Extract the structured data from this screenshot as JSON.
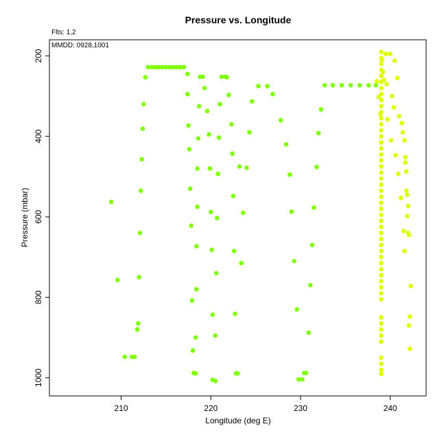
{
  "chart_data": {
    "type": "scatter",
    "title": "Pressure vs. Longitude",
    "xlabel": "Longitude (deg E)",
    "ylabel": "Pressure (mbar)",
    "xlim": [
      202,
      244
    ],
    "ylim": [
      1045,
      160
    ],
    "y_inverted": true,
    "xticks": [
      210,
      220,
      230,
      240
    ],
    "yticks": [
      200,
      400,
      600,
      800,
      1000
    ],
    "annotations": {
      "flts": "Flts: 1,2",
      "mmdd": "MMDD: 0928,1001"
    },
    "grid": false,
    "series": [
      {
        "color": "#80ff00",
        "points": [
          [
            208.9,
            563
          ],
          [
            209.6,
            757
          ],
          [
            210.4,
            948
          ],
          [
            211.2,
            948
          ],
          [
            211.5,
            948
          ],
          [
            211.8,
            880
          ],
          [
            211.9,
            865
          ],
          [
            212.0,
            750
          ],
          [
            212.1,
            640
          ],
          [
            212.2,
            535
          ],
          [
            212.3,
            457
          ],
          [
            212.4,
            381
          ],
          [
            212.5,
            320
          ],
          [
            212.7,
            253
          ],
          [
            213.0,
            228
          ],
          [
            213.4,
            228
          ],
          [
            213.8,
            228
          ],
          [
            214.2,
            228
          ],
          [
            214.6,
            228
          ],
          [
            215.0,
            228
          ],
          [
            215.4,
            228
          ],
          [
            215.8,
            228
          ],
          [
            216.2,
            228
          ],
          [
            216.6,
            228
          ],
          [
            217.0,
            228
          ],
          [
            217.4,
            245
          ],
          [
            217.4,
            295
          ],
          [
            217.5,
            373
          ],
          [
            217.6,
            432
          ],
          [
            217.7,
            530
          ],
          [
            217.8,
            622
          ],
          [
            217.9,
            808
          ],
          [
            218.0,
            932
          ],
          [
            218.1,
            988
          ],
          [
            218.3,
            989
          ],
          [
            218.3,
            900
          ],
          [
            218.4,
            780
          ],
          [
            218.4,
            673
          ],
          [
            218.5,
            575
          ],
          [
            218.5,
            480
          ],
          [
            218.6,
            405
          ],
          [
            218.7,
            325
          ],
          [
            218.8,
            252
          ],
          [
            219.1,
            252
          ],
          [
            219.3,
            280
          ],
          [
            219.6,
            337
          ],
          [
            219.8,
            395
          ],
          [
            219.9,
            480
          ],
          [
            220.0,
            588
          ],
          [
            220.1,
            682
          ],
          [
            220.2,
            843
          ],
          [
            220.2,
            1005
          ],
          [
            220.5,
            1008
          ],
          [
            220.5,
            895
          ],
          [
            220.6,
            740
          ],
          [
            220.7,
            603
          ],
          [
            220.8,
            493
          ],
          [
            220.9,
            403
          ],
          [
            221.0,
            320
          ],
          [
            221.2,
            252
          ],
          [
            221.6,
            252
          ],
          [
            221.8,
            253
          ],
          [
            222.0,
            297
          ],
          [
            222.3,
            370
          ],
          [
            222.4,
            443
          ],
          [
            222.5,
            548
          ],
          [
            222.6,
            685
          ],
          [
            222.7,
            841
          ],
          [
            222.8,
            989
          ],
          [
            223.0,
            989
          ],
          [
            223.2,
            475
          ],
          [
            223.4,
            715
          ],
          [
            223.6,
            590
          ],
          [
            224.0,
            478
          ],
          [
            224.3,
            390
          ],
          [
            224.6,
            313
          ],
          [
            225.3,
            275
          ],
          [
            226.3,
            275
          ],
          [
            226.9,
            295
          ],
          [
            227.8,
            360
          ],
          [
            228.4,
            420
          ],
          [
            228.8,
            495
          ],
          [
            229.0,
            587
          ],
          [
            229.3,
            710
          ],
          [
            229.6,
            830
          ],
          [
            229.8,
            1004
          ],
          [
            230.2,
            1004
          ],
          [
            230.4,
            988
          ],
          [
            230.6,
            988
          ],
          [
            230.9,
            888
          ],
          [
            231.1,
            770
          ],
          [
            231.3,
            670
          ],
          [
            231.5,
            577
          ],
          [
            231.8,
            476
          ],
          [
            232.0,
            392
          ],
          [
            232.3,
            333
          ],
          [
            232.7,
            273
          ],
          [
            233.6,
            273
          ],
          [
            234.6,
            273
          ],
          [
            235.6,
            273
          ],
          [
            236.6,
            273
          ],
          [
            237.6,
            273
          ],
          [
            238.4,
            273
          ]
        ]
      },
      {
        "color": "#dfff00",
        "points": [
          [
            238.5,
            263
          ],
          [
            238.7,
            302
          ],
          [
            238.9,
            345
          ],
          [
            239.0,
            190
          ],
          [
            239.0,
            205
          ],
          [
            239.0,
            220
          ],
          [
            239.0,
            235
          ],
          [
            239.0,
            250
          ],
          [
            239.0,
            265
          ],
          [
            239.0,
            280
          ],
          [
            239.0,
            295
          ],
          [
            239.0,
            310
          ],
          [
            239.0,
            325
          ],
          [
            239.0,
            340
          ],
          [
            239.0,
            355
          ],
          [
            239.0,
            370
          ],
          [
            239.0,
            385
          ],
          [
            239.0,
            400
          ],
          [
            239.0,
            415
          ],
          [
            239.0,
            430
          ],
          [
            239.0,
            445
          ],
          [
            239.0,
            460
          ],
          [
            239.0,
            475
          ],
          [
            239.0,
            490
          ],
          [
            239.0,
            505
          ],
          [
            239.0,
            520
          ],
          [
            239.0,
            535
          ],
          [
            239.0,
            550
          ],
          [
            239.0,
            565
          ],
          [
            239.0,
            580
          ],
          [
            239.0,
            595
          ],
          [
            239.0,
            610
          ],
          [
            239.0,
            625
          ],
          [
            239.0,
            640
          ],
          [
            239.0,
            655
          ],
          [
            239.0,
            670
          ],
          [
            239.0,
            685
          ],
          [
            239.0,
            700
          ],
          [
            239.0,
            715
          ],
          [
            239.0,
            730
          ],
          [
            239.0,
            745
          ],
          [
            239.0,
            760
          ],
          [
            239.0,
            775
          ],
          [
            239.0,
            790
          ],
          [
            239.0,
            805
          ],
          [
            239.0,
            850
          ],
          [
            239.0,
            865
          ],
          [
            239.0,
            880
          ],
          [
            239.0,
            895
          ],
          [
            239.0,
            910
          ],
          [
            239.0,
            950
          ],
          [
            239.0,
            965
          ],
          [
            239.0,
            980
          ],
          [
            239.0,
            990
          ],
          [
            239.1,
            210
          ],
          [
            239.2,
            240
          ],
          [
            239.3,
            260
          ],
          [
            239.5,
            195
          ],
          [
            239.6,
            270
          ],
          [
            239.7,
            358
          ],
          [
            240.0,
            195
          ],
          [
            240.1,
            410
          ],
          [
            240.2,
            300
          ],
          [
            240.4,
            328
          ],
          [
            240.5,
            212
          ],
          [
            240.6,
            447
          ],
          [
            240.8,
            255
          ],
          [
            240.9,
            493
          ],
          [
            241.0,
            350
          ],
          [
            241.2,
            553
          ],
          [
            241.3,
            367
          ],
          [
            241.4,
            390
          ],
          [
            241.5,
            635
          ],
          [
            241.6,
            685
          ],
          [
            241.6,
            410
          ],
          [
            241.7,
            452
          ],
          [
            241.7,
            465
          ],
          [
            241.8,
            487
          ],
          [
            241.8,
            535
          ],
          [
            241.9,
            545
          ],
          [
            241.9,
            598
          ],
          [
            242.0,
            573
          ],
          [
            242.0,
            640
          ],
          [
            242.1,
            645
          ],
          [
            242.1,
            870
          ],
          [
            242.2,
            928
          ],
          [
            242.2,
            848
          ],
          [
            242.3,
            772
          ]
        ]
      }
    ]
  }
}
